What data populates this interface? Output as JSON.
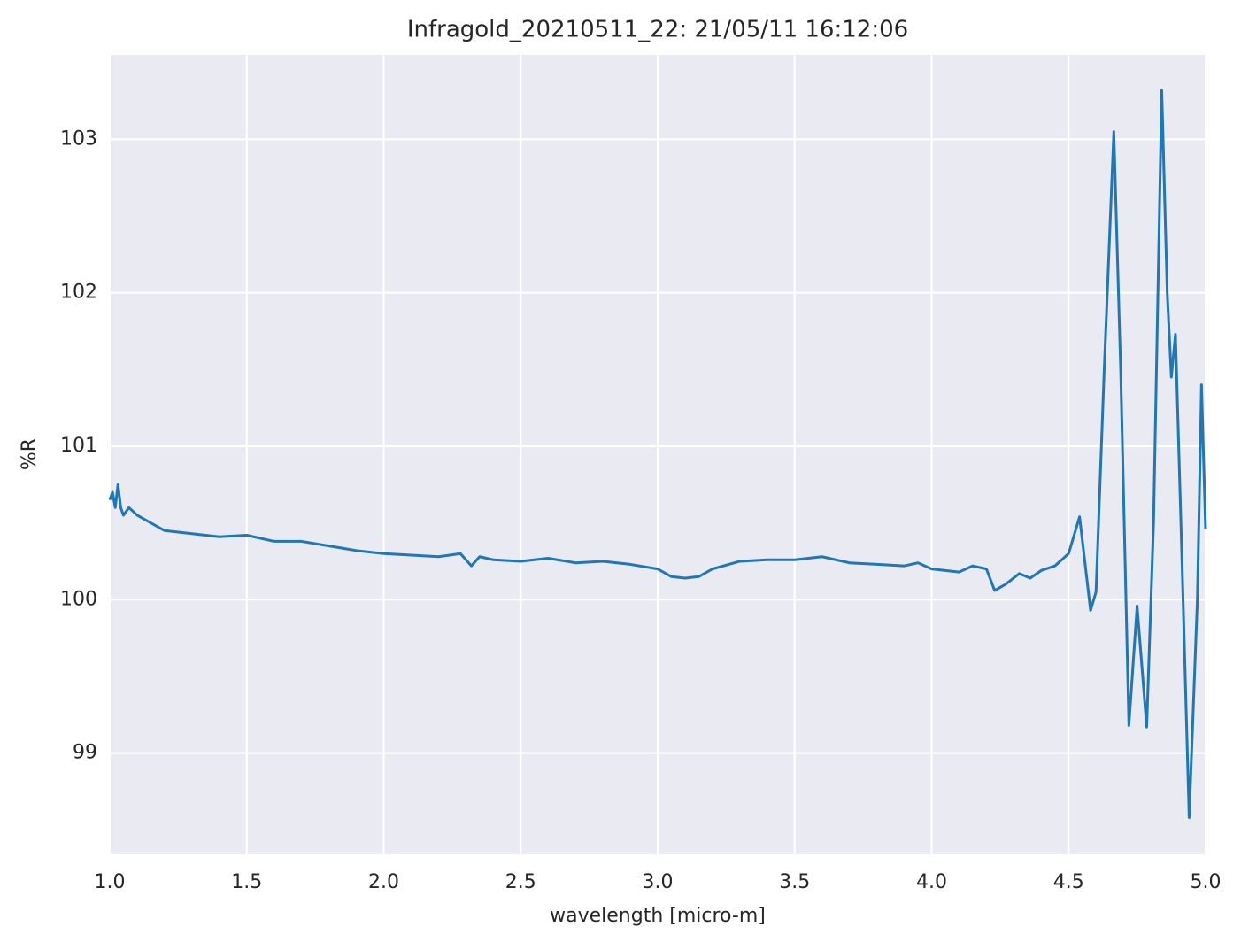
{
  "chart_data": {
    "type": "line",
    "title": "Infragold_20210511_22:  21/05/11 16:12:06",
    "xlabel": "wavelength [micro-m]",
    "ylabel": "%R",
    "x": [
      1.0,
      1.01,
      1.02,
      1.03,
      1.04,
      1.05,
      1.07,
      1.1,
      1.15,
      1.2,
      1.3,
      1.4,
      1.5,
      1.6,
      1.7,
      1.8,
      1.9,
      2.0,
      2.1,
      2.2,
      2.28,
      2.32,
      2.35,
      2.4,
      2.5,
      2.6,
      2.7,
      2.8,
      2.9,
      3.0,
      3.05,
      3.1,
      3.15,
      3.2,
      3.3,
      3.4,
      3.5,
      3.6,
      3.7,
      3.8,
      3.9,
      3.95,
      4.0,
      4.1,
      4.15,
      4.2,
      4.23,
      4.27,
      4.32,
      4.36,
      4.4,
      4.45,
      4.5,
      4.54,
      4.58,
      4.6,
      4.63,
      4.665,
      4.69,
      4.72,
      4.75,
      4.785,
      4.81,
      4.84,
      4.86,
      4.875,
      4.89,
      4.91,
      4.94,
      4.97,
      4.985,
      5.0
    ],
    "series": [
      {
        "name": "%R",
        "color": "#1f77b4",
        "values": [
          100.65,
          100.7,
          100.6,
          100.75,
          100.6,
          100.55,
          100.6,
          100.55,
          100.5,
          100.45,
          100.43,
          100.41,
          100.42,
          100.38,
          100.38,
          100.35,
          100.32,
          100.3,
          100.29,
          100.28,
          100.3,
          100.22,
          100.28,
          100.26,
          100.25,
          100.27,
          100.24,
          100.25,
          100.23,
          100.2,
          100.15,
          100.14,
          100.15,
          100.2,
          100.25,
          100.26,
          100.26,
          100.28,
          100.24,
          100.23,
          100.22,
          100.24,
          100.2,
          100.18,
          100.22,
          100.2,
          100.06,
          100.1,
          100.17,
          100.14,
          100.19,
          100.22,
          100.3,
          100.54,
          99.93,
          100.05,
          101.5,
          103.05,
          101.5,
          99.18,
          99.96,
          99.17,
          100.5,
          103.32,
          102.0,
          101.45,
          101.73,
          100.5,
          98.58,
          100.0,
          101.4,
          100.46
        ]
      }
    ],
    "xlim": [
      1.0,
      5.0
    ],
    "ylim": [
      98.34,
      103.55
    ],
    "xticks": [
      {
        "value": 1.0,
        "label": "1.0"
      },
      1.5,
      {
        "value": 2.0,
        "label": "2.0"
      },
      2.5,
      {
        "value": 3.0,
        "label": "3.0"
      },
      3.5,
      {
        "value": 4.0,
        "label": "4.0"
      },
      4.5,
      {
        "value": 5.0,
        "label": "5.0"
      }
    ],
    "yticks": [
      99,
      100,
      101,
      102,
      103
    ],
    "grid": true
  }
}
